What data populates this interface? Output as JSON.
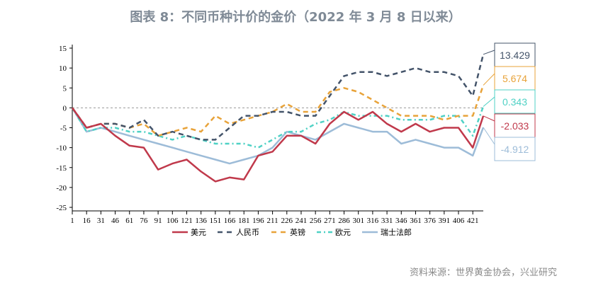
{
  "title": "图表 8：不同币种计价的金价（2022 年 3 月 8 日以来）",
  "source": "资料来源：世界黄金协会，兴业研究",
  "chart_data": {
    "type": "line",
    "title": "图表 8：不同币种计价的金价（2022 年 3 月 8 日以来）",
    "xlabel": "",
    "ylabel": "",
    "ylim": [
      -25,
      15
    ],
    "yticks": [
      15,
      10,
      5,
      0,
      -5,
      -10,
      -15,
      -20,
      -25
    ],
    "xticks": [
      1,
      16,
      31,
      46,
      61,
      76,
      91,
      106,
      121,
      136,
      151,
      166,
      181,
      196,
      211,
      226,
      241,
      256,
      271,
      286,
      301,
      316,
      331,
      346,
      361,
      376,
      391,
      406,
      421
    ],
    "xlim": [
      1,
      432
    ],
    "grid": false,
    "reference_line": 0,
    "legend": "bottom",
    "x": [
      1,
      16,
      31,
      46,
      61,
      76,
      91,
      106,
      121,
      136,
      151,
      166,
      181,
      196,
      211,
      226,
      241,
      256,
      271,
      286,
      301,
      316,
      331,
      346,
      361,
      376,
      391,
      406,
      421,
      432
    ],
    "series": [
      {
        "name": "美元",
        "color": "#c0394b",
        "dash": "solid",
        "values": [
          0,
          -5,
          -4,
          -7,
          -9.5,
          -10,
          -15.5,
          -14,
          -13,
          -16,
          -18.5,
          -17.5,
          -18,
          -12,
          -11,
          -7,
          -7,
          -9,
          -4,
          -1,
          -3,
          -1,
          -4,
          -6,
          -4,
          -6,
          -5,
          -5,
          -10,
          -2.033
        ],
        "last_label": "-2.033"
      },
      {
        "name": "人民币",
        "color": "#44546a",
        "dash": "dash",
        "values": [
          0,
          -5,
          -4,
          -4,
          -5,
          -3,
          -7,
          -6,
          -7,
          -8,
          -8,
          -5,
          -2,
          -2,
          -1,
          -1,
          -2,
          -2,
          3,
          8,
          9,
          9,
          8,
          9,
          10,
          9,
          9,
          8,
          3,
          13.429
        ],
        "last_label": "13.429"
      },
      {
        "name": "英镑",
        "color": "#e8a33a",
        "dash": "dash",
        "values": [
          0,
          -5,
          -4,
          -4,
          -5,
          -4,
          -7,
          -6,
          -5,
          -6,
          -2,
          -4,
          -3,
          -2,
          -1,
          1,
          -1,
          -1,
          4,
          5,
          4,
          2,
          0,
          -2,
          -2,
          -2,
          -3,
          -2,
          -2,
          5.674
        ],
        "last_label": "5.674"
      },
      {
        "name": "欧元",
        "color": "#4fd1c5",
        "dash": "dashdot",
        "values": [
          0,
          -6,
          -5,
          -5,
          -6,
          -6,
          -7,
          -8,
          -7,
          -8,
          -9,
          -9,
          -9,
          -10,
          -8,
          -6,
          -6,
          -4,
          -3,
          -1,
          -2,
          -2,
          -2,
          -3,
          -3,
          -3,
          -2,
          -2,
          -7,
          0.343
        ],
        "last_label": "0.343"
      },
      {
        "name": "瑞士法郎",
        "color": "#9dbcd8",
        "dash": "solid",
        "values": [
          0,
          -6,
          -5,
          -6,
          -7,
          -8,
          -9,
          -10,
          -11,
          -12,
          -13,
          -14,
          -13,
          -12,
          -10,
          -6,
          -7,
          -8,
          -6,
          -4,
          -5,
          -6,
          -6,
          -9,
          -8,
          -9,
          -10,
          -10,
          -12,
          -4.912
        ],
        "last_label": "-4.912"
      }
    ]
  }
}
